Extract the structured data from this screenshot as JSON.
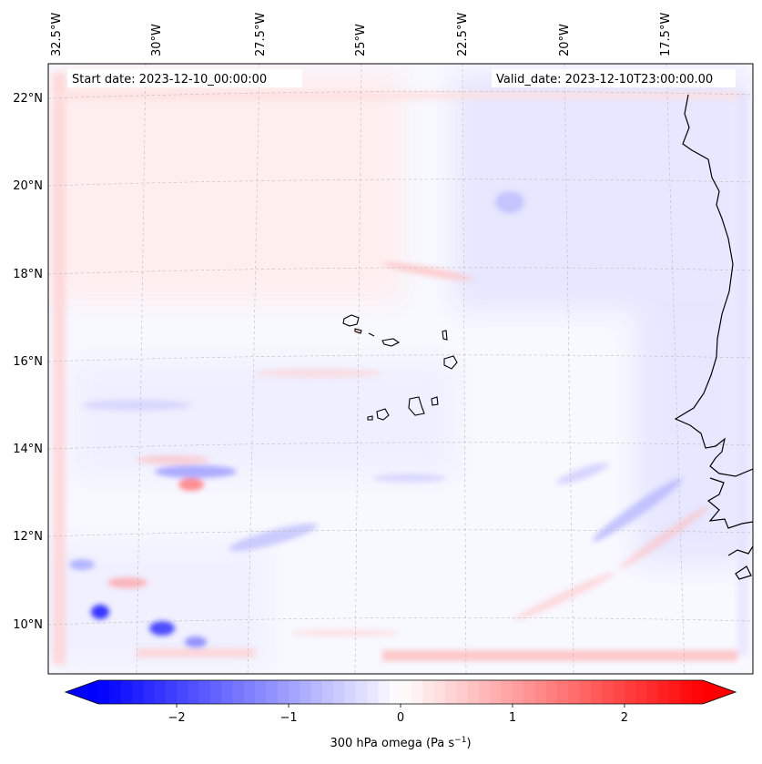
{
  "map": {
    "start_date": "Start date: 2023-12-10_00:00:00",
    "valid_date": "Valid_date: 2023-12-10T23:00:00.00",
    "lon_labels": [
      "32.5°W",
      "30°W",
      "27.5°W",
      "25°W",
      "22.5°W",
      "20°W",
      "17.5°W"
    ],
    "lat_labels": [
      "22°N",
      "20°N",
      "18°N",
      "16°N",
      "14°N",
      "12°N",
      "10°N"
    ],
    "field": "300 hPa omega",
    "features": [
      "Cape Verde islands",
      "West African coastline (Senegal / Gambia / Guinea-Bissau)"
    ]
  },
  "colorbar": {
    "label": "300 hPa omega (Pa s",
    "label_exponent": "−1",
    "label_close": ")",
    "ticks": [
      "−2",
      "−1",
      "0",
      "1",
      "2"
    ],
    "tick_values": [
      -2,
      -1,
      0,
      1,
      2
    ],
    "range": [
      -2.7,
      2.7
    ],
    "colormap": "bwr",
    "low_color": "#0000ff",
    "mid_color": "#ffffff",
    "high_color": "#ff0000"
  }
}
